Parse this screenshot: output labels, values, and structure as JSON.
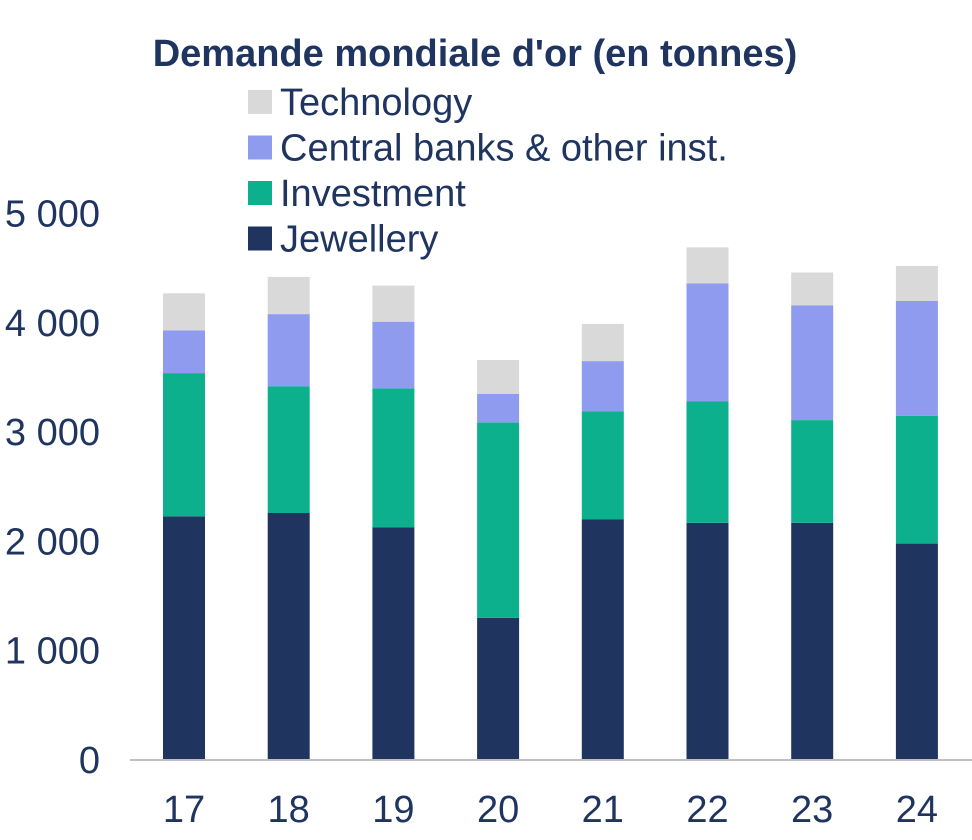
{
  "chart_data": {
    "type": "bar",
    "stacked": true,
    "title": "Demande mondiale d'or (en tonnes)",
    "xlabel": "",
    "ylabel": "",
    "categories": [
      "17",
      "18",
      "19",
      "20",
      "21",
      "22",
      "23",
      "24"
    ],
    "ylim": [
      0,
      5000
    ],
    "yticks": [
      0,
      1000,
      2000,
      3000,
      4000,
      5000
    ],
    "ytick_labels": [
      "0",
      "1 000",
      "2 000",
      "3 000",
      "4 000",
      "5 000"
    ],
    "grid": false,
    "legend_position": "top",
    "series": [
      {
        "name": "Jewellery",
        "color": "#1f3560",
        "values": [
          2230,
          2260,
          2130,
          1300,
          2200,
          2170,
          2170,
          1980
        ]
      },
      {
        "name": "Investment",
        "color": "#0db08c",
        "values": [
          1310,
          1160,
          1270,
          1790,
          990,
          1110,
          940,
          1170
        ]
      },
      {
        "name": "Central banks & other inst.",
        "color": "#8f9bef",
        "values": [
          390,
          660,
          610,
          260,
          460,
          1080,
          1050,
          1050
        ]
      },
      {
        "name": "Technology",
        "color": "#d9d9d9",
        "values": [
          340,
          340,
          330,
          310,
          340,
          330,
          300,
          320
        ]
      }
    ],
    "legend_order": [
      "Technology",
      "Central banks & other inst.",
      "Investment",
      "Jewellery"
    ],
    "text_color": "#1f3560",
    "axis_color": "#bfbfbf"
  }
}
